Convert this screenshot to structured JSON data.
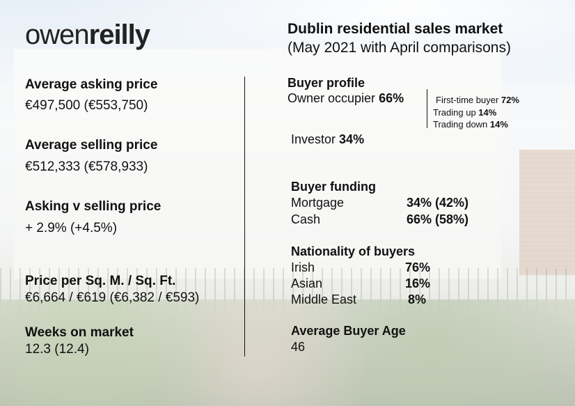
{
  "logo": {
    "part1": "owen",
    "part2": "reilly"
  },
  "header": {
    "title": "Dublin residential sales market",
    "subtitle": "(May 2021 with April comparisons)"
  },
  "left": {
    "asking_label": "Average asking price",
    "asking_value": "€497,500 (€553,750)",
    "selling_label": "Average selling price",
    "selling_value": "€512,333 (€578,933)",
    "avs_label": "Asking v selling price",
    "avs_value": "+ 2.9% (+4.5%)",
    "sqm_label": "Price per Sq. M. / Sq. Ft.",
    "sqm_value": "€6,664 / €619 (€6,382 / €593)",
    "weeks_label": "Weeks on market",
    "weeks_value": "12.3 (12.4)"
  },
  "buyer_profile": {
    "heading": "Buyer profile",
    "owner_label": "Owner occupier",
    "owner_value": "66%",
    "first_time_label": "First-time buyer",
    "first_time_value": "72%",
    "trading_up_label": "Trading up",
    "trading_up_value": "14%",
    "trading_down_label": "Trading down",
    "trading_down_value": "14%",
    "investor_label": "Investor",
    "investor_value": "34%"
  },
  "funding": {
    "heading": "Buyer funding",
    "rows": [
      {
        "label": "Mortgage",
        "value": "34% (42%)"
      },
      {
        "label": "Cash",
        "value": "66% (58%)"
      }
    ]
  },
  "nationality": {
    "heading": "Nationality of buyers",
    "rows": [
      {
        "label": "Irish",
        "value": "76%"
      },
      {
        "label": "Asian",
        "value": "16%"
      },
      {
        "label": "Middle East",
        "value": "8%"
      }
    ]
  },
  "age": {
    "heading": "Average Buyer Age",
    "value": "46"
  }
}
